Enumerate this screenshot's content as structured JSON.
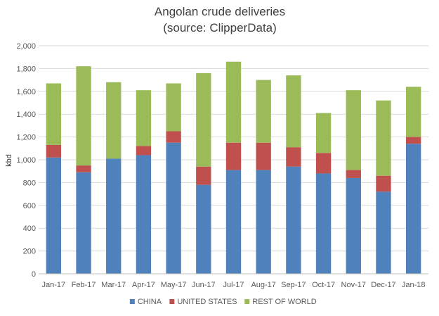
{
  "chart_data": {
    "type": "bar",
    "stacked": true,
    "title": "Angolan crude deliveries",
    "subtitle": "(source: ClipperData)",
    "xlabel": "",
    "ylabel": "kbd",
    "ylim": [
      0,
      2000
    ],
    "yticks": [
      0,
      200,
      400,
      600,
      800,
      1000,
      1200,
      1400,
      1600,
      1800,
      2000
    ],
    "ytick_labels": [
      "0",
      "200",
      "400",
      "600",
      "800",
      "1,000",
      "1,200",
      "1,400",
      "1,600",
      "1,800",
      "2,000"
    ],
    "grid": true,
    "legend_position": "bottom",
    "categories": [
      "Jan-17",
      "Feb-17",
      "Mar-17",
      "Apr-17",
      "May-17",
      "Jun-17",
      "Jul-17",
      "Aug-17",
      "Sep-17",
      "Oct-17",
      "Nov-17",
      "Dec-17",
      "Jan-18"
    ],
    "series": [
      {
        "name": "CHINA",
        "color": "#4f81bd",
        "values": [
          1020,
          890,
          1010,
          1040,
          1150,
          780,
          910,
          910,
          940,
          880,
          840,
          720,
          1140
        ]
      },
      {
        "name": "UNITED STATES",
        "color": "#c0504d",
        "values": [
          110,
          60,
          0,
          80,
          100,
          160,
          240,
          240,
          170,
          180,
          70,
          140,
          60
        ]
      },
      {
        "name": "REST OF WORLD",
        "color": "#9bbb59",
        "values": [
          540,
          870,
          670,
          490,
          420,
          820,
          710,
          550,
          630,
          350,
          700,
          660,
          440
        ]
      }
    ]
  }
}
